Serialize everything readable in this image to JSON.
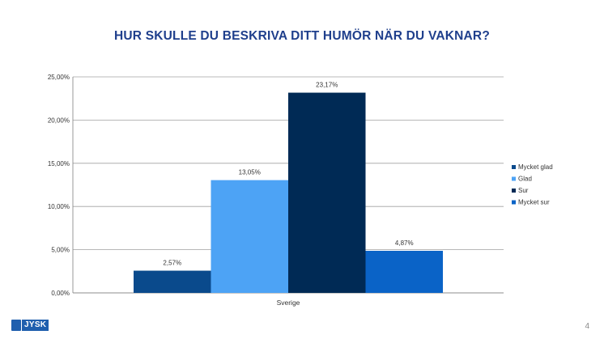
{
  "slide": {
    "title": "HUR SKULLE DU BESKRIVA DITT HUMÖR NÄR DU VAKNAR?",
    "page_number": "4",
    "logo_text": "JYSK"
  },
  "chart_data": {
    "type": "bar",
    "categories": [
      "Sverige"
    ],
    "series": [
      {
        "name": "Mycket glad",
        "values": [
          2.57
        ],
        "label": "2,57%",
        "color": "#0a4a8c"
      },
      {
        "name": "Glad",
        "values": [
          13.05
        ],
        "label": "13,05%",
        "color": "#4da3f5"
      },
      {
        "name": "Sur",
        "values": [
          23.17
        ],
        "label": "23,17%",
        "color": "#002a55"
      },
      {
        "name": "Mycket sur",
        "values": [
          4.87
        ],
        "label": "4,87%",
        "color": "#0a63c7"
      }
    ],
    "ylim": [
      0,
      25
    ],
    "yticks": [
      0,
      5,
      10,
      15,
      20,
      25
    ],
    "ytick_labels": [
      "0,00%",
      "5,00%",
      "10,00%",
      "15,00%",
      "20,00%",
      "25,00%"
    ],
    "grid": true,
    "legend": "right"
  }
}
